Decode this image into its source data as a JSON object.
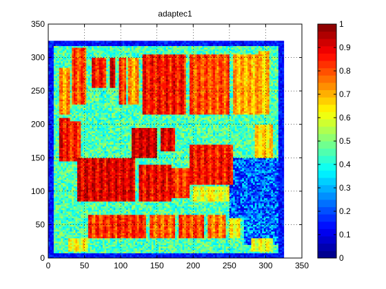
{
  "chart_data": {
    "type": "heatmap",
    "title": "adaptec1",
    "xlabel": "",
    "ylabel": "",
    "xlim": [
      0,
      350
    ],
    "ylim": [
      0,
      350
    ],
    "x_ticks": [
      "0",
      "50",
      "100",
      "150",
      "200",
      "250",
      "300",
      "350"
    ],
    "y_ticks": [
      "0",
      "50",
      "100",
      "150",
      "200",
      "250",
      "300",
      "350"
    ],
    "grid": "dotted",
    "value_range": [
      0,
      1
    ],
    "colormap": "jet",
    "colorbar": {
      "ticks": [
        "0",
        "0.1",
        "0.2",
        "0.3",
        "0.4",
        "0.5",
        "0.6",
        "0.7",
        "0.8",
        "0.9",
        "1"
      ],
      "levels": 32
    },
    "placement_extent": {
      "x": [
        0,
        325
      ],
      "y": [
        0,
        325
      ]
    },
    "background_level": 0.45,
    "regions": [
      {
        "x": [
          15,
          30
        ],
        "y": [
          215,
          285
        ],
        "v": 0.72
      },
      {
        "x": [
          15,
          30
        ],
        "y": [
          145,
          210
        ],
        "v": 0.88
      },
      {
        "x": [
          32,
          52
        ],
        "y": [
          230,
          315
        ],
        "v": 0.8
      },
      {
        "x": [
          60,
          80
        ],
        "y": [
          255,
          300
        ],
        "v": 0.85
      },
      {
        "x": [
          85,
          92
        ],
        "y": [
          255,
          300
        ],
        "v": 0.92
      },
      {
        "x": [
          98,
          108
        ],
        "y": [
          230,
          300
        ],
        "v": 0.82
      },
      {
        "x": [
          110,
          125
        ],
        "y": [
          230,
          300
        ],
        "v": 0.72
      },
      {
        "x": [
          130,
          190
        ],
        "y": [
          215,
          305
        ],
        "v": 0.86
      },
      {
        "x": [
          195,
          250
        ],
        "y": [
          215,
          305
        ],
        "v": 0.8
      },
      {
        "x": [
          255,
          290
        ],
        "y": [
          215,
          305
        ],
        "v": 0.7
      },
      {
        "x": [
          290,
          305
        ],
        "y": [
          215,
          310
        ],
        "v": 0.68
      },
      {
        "x": [
          22,
          45
        ],
        "y": [
          145,
          205
        ],
        "v": 0.84
      },
      {
        "x": [
          115,
          150
        ],
        "y": [
          150,
          195
        ],
        "v": 0.92
      },
      {
        "x": [
          155,
          175
        ],
        "y": [
          160,
          195
        ],
        "v": 0.9
      },
      {
        "x": [
          285,
          310
        ],
        "y": [
          150,
          200
        ],
        "v": 0.66
      },
      {
        "x": [
          40,
          120
        ],
        "y": [
          85,
          150
        ],
        "v": 0.9
      },
      {
        "x": [
          125,
          170
        ],
        "y": [
          85,
          140
        ],
        "v": 0.88
      },
      {
        "x": [
          170,
          195
        ],
        "y": [
          90,
          135
        ],
        "v": 0.82
      },
      {
        "x": [
          195,
          255
        ],
        "y": [
          110,
          170
        ],
        "v": 0.86
      },
      {
        "x": [
          200,
          225
        ],
        "y": [
          85,
          108
        ],
        "v": 0.6
      },
      {
        "x": [
          225,
          250
        ],
        "y": [
          85,
          108
        ],
        "v": 0.6
      },
      {
        "x": [
          55,
          95
        ],
        "y": [
          30,
          65
        ],
        "v": 0.82
      },
      {
        "x": [
          95,
          135
        ],
        "y": [
          30,
          65
        ],
        "v": 0.84
      },
      {
        "x": [
          140,
          175
        ],
        "y": [
          30,
          65
        ],
        "v": 0.78
      },
      {
        "x": [
          180,
          215
        ],
        "y": [
          30,
          65
        ],
        "v": 0.8
      },
      {
        "x": [
          220,
          245
        ],
        "y": [
          30,
          65
        ],
        "v": 0.75
      },
      {
        "x": [
          250,
          265
        ],
        "y": [
          30,
          60
        ],
        "v": 0.62
      },
      {
        "x": [
          28,
          55
        ],
        "y": [
          10,
          30
        ],
        "v": 0.62
      },
      {
        "x": [
          280,
          310
        ],
        "y": [
          10,
          30
        ],
        "v": 0.6
      }
    ],
    "low_regions": [
      {
        "x": [
          250,
          325
        ],
        "y": [
          60,
          150
        ],
        "v": 0.22
      },
      {
        "x": [
          270,
          325
        ],
        "y": [
          20,
          60
        ],
        "v": 0.25
      }
    ]
  }
}
